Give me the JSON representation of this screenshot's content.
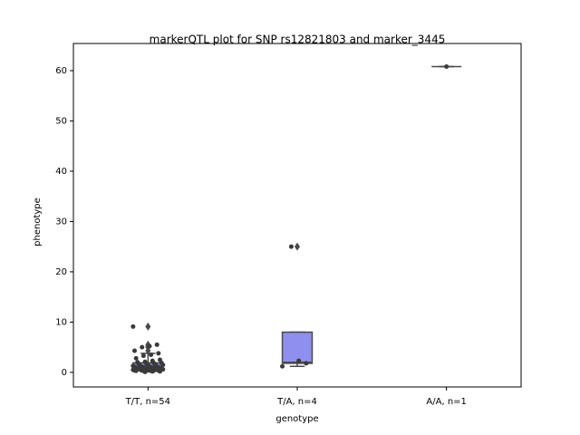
{
  "chart_data": {
    "type": "box",
    "title": "markerQTL plot for SNP rs12821803 and marker_3445",
    "x_label": "genotype",
    "y_label": "phenotype",
    "categories": [
      "T/T, n=54",
      "T/A, n=4",
      "A/A, n=1"
    ],
    "ylim": [
      -2.9,
      65.4
    ],
    "yticks": [
      0,
      10,
      20,
      30,
      40,
      50,
      60
    ],
    "point_color": "#3a3a3a",
    "line_color": "#4a4a4a",
    "series": [
      {
        "color": "#8f8ff0",
        "whislo": 0.1,
        "q1": 0.5,
        "median": 0.95,
        "q3": 1.9,
        "whishi": 3.8,
        "fliers": [
          9.1,
          5.5,
          5.2,
          5.0,
          4.3
        ],
        "points": [
          9.1,
          5.5,
          5.2,
          5.0,
          4.3,
          3.8,
          3.5,
          3.3,
          2.8,
          2.5,
          2.3,
          2.1,
          2.0,
          1.9,
          1.8,
          1.7,
          1.6,
          1.5,
          1.5,
          1.4,
          1.3,
          1.3,
          1.2,
          1.2,
          1.1,
          1.1,
          1.0,
          1.0,
          1.0,
          0.9,
          0.9,
          0.9,
          0.8,
          0.8,
          0.8,
          0.7,
          0.7,
          0.7,
          0.6,
          0.6,
          0.6,
          0.5,
          0.5,
          0.5,
          0.5,
          0.4,
          0.4,
          0.4,
          0.3,
          0.3,
          0.3,
          0.2,
          0.2,
          0.1
        ]
      },
      {
        "color": "#8f8ff0",
        "whislo": 1.2,
        "q1": 1.8,
        "median": 2.0,
        "q3": 8.0,
        "whishi": 8.0,
        "fliers": [
          25.0
        ],
        "points": [
          1.2,
          1.8,
          2.3,
          25.0
        ]
      },
      {
        "color": "#8f8ff0",
        "whislo": 60.8,
        "q1": 60.8,
        "median": 60.8,
        "q3": 60.8,
        "whishi": 60.8,
        "fliers": [],
        "points": [
          60.8
        ]
      }
    ]
  }
}
